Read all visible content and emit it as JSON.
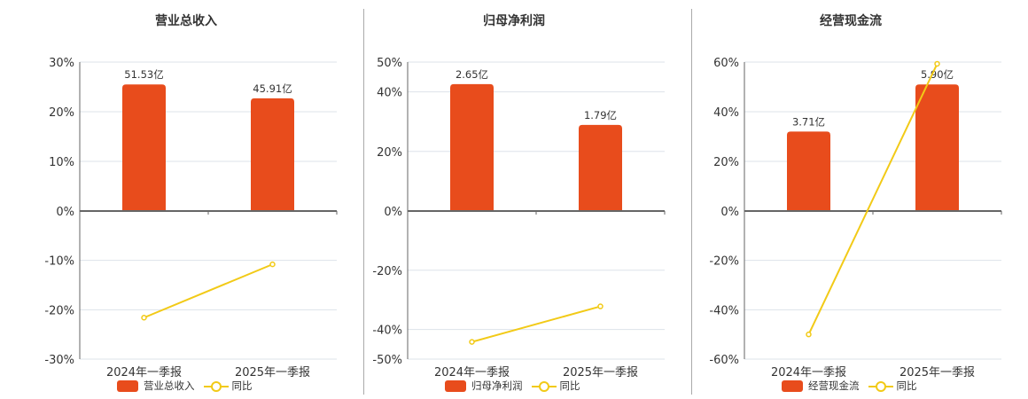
{
  "colors": {
    "bar": "#e84c1c",
    "line": "#f2ca17",
    "grid": "#dde3ea",
    "axis": "#666666"
  },
  "chart_data": [
    {
      "type": "bar",
      "title": "营业总收入",
      "categories": [
        "2024年一季报",
        "2025年一季报"
      ],
      "series": [
        {
          "name": "营业总收入",
          "type": "bar",
          "values": [
            25.5,
            22.7
          ],
          "labels": [
            "51.53亿",
            "45.91亿"
          ]
        },
        {
          "name": "同比",
          "type": "line",
          "values": [
            -21.6,
            -10.8
          ]
        }
      ],
      "yticks": [
        "30%",
        "20%",
        "10%",
        "0%",
        "-10%",
        "-20%",
        "-30%"
      ],
      "ylim": [
        -30,
        30
      ],
      "grid": true,
      "legend_position": "bottom"
    },
    {
      "type": "bar",
      "title": "归母净利润",
      "categories": [
        "2024年一季报",
        "2025年一季报"
      ],
      "series": [
        {
          "name": "归母净利润",
          "type": "bar",
          "values": [
            42.6,
            28.9
          ],
          "labels": [
            "2.65亿",
            "1.79亿"
          ]
        },
        {
          "name": "同比",
          "type": "line",
          "values": [
            -44.2,
            -32.2
          ]
        }
      ],
      "yticks": [
        "50%",
        "40%",
        "20%",
        "0%",
        "-20%",
        "-40%",
        "-50%"
      ],
      "ylim": [
        -50,
        50
      ],
      "grid": true,
      "legend_position": "bottom"
    },
    {
      "type": "bar",
      "title": "经营现金流",
      "categories": [
        "2024年一季报",
        "2025年一季报"
      ],
      "series": [
        {
          "name": "经营现金流",
          "type": "bar",
          "values": [
            32.0,
            51.0
          ],
          "labels": [
            "3.71亿",
            "5.90亿"
          ]
        },
        {
          "name": "同比",
          "type": "line",
          "values": [
            -50.0,
            59.3
          ]
        }
      ],
      "yticks": [
        "60%",
        "40%",
        "20%",
        "0%",
        "-20%",
        "-40%",
        "-60%"
      ],
      "ylim": [
        -60,
        60
      ],
      "grid": true,
      "legend_position": "bottom"
    }
  ],
  "legend_line_label": "同比"
}
